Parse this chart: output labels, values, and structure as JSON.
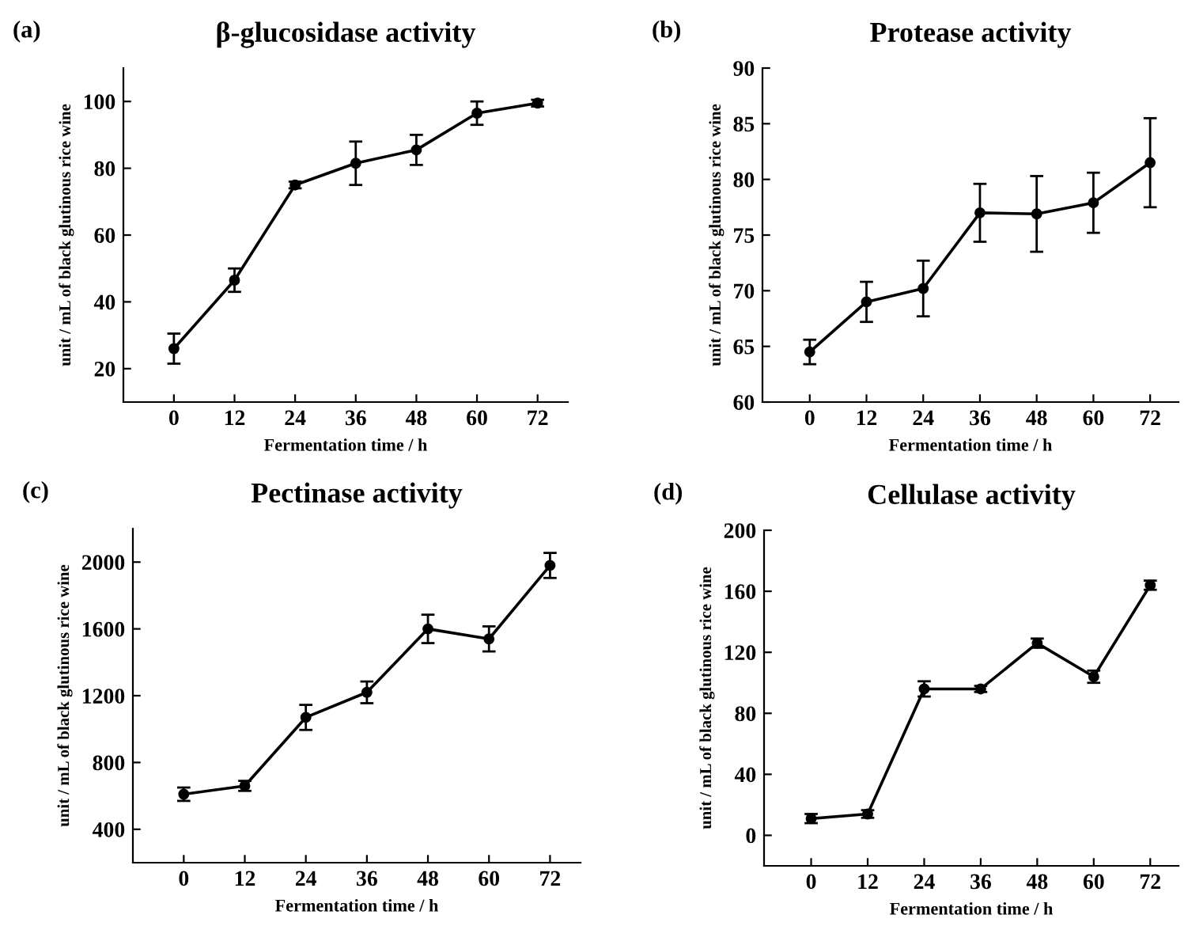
{
  "chart_data": [
    {
      "type": "line",
      "title": "β-glucosidase activity",
      "xlabel": "Fermentation time / h",
      "ylabel": "unit / mL of black glutinous rice wine",
      "annotations": [
        "(a)"
      ],
      "x": [
        0,
        12,
        24,
        36,
        48,
        60,
        72
      ],
      "xlim": [
        -10,
        78
      ],
      "xticks": [
        0,
        12,
        24,
        36,
        48,
        60,
        72
      ],
      "ylim": [
        10,
        110
      ],
      "yticks": [
        20,
        40,
        60,
        80,
        100
      ],
      "marker": "circle",
      "series": [
        {
          "color": "#000000",
          "values": [
            26,
            46.5,
            75,
            81.5,
            85.5,
            96.5,
            99.5
          ],
          "errors": [
            4.5,
            3.5,
            1,
            6.5,
            4.5,
            3.5,
            1
          ]
        }
      ]
    },
    {
      "type": "line",
      "title": "Protease activity",
      "xlabel": "Fermentation time / h",
      "ylabel": "unit / mL of black glutinous rice wine",
      "annotations": [
        "(b)"
      ],
      "x": [
        0,
        12,
        24,
        36,
        48,
        60,
        72
      ],
      "xlim": [
        -10,
        78
      ],
      "xticks": [
        0,
        12,
        24,
        36,
        48,
        60,
        72
      ],
      "ylim": [
        60,
        90
      ],
      "yticks": [
        60,
        65,
        70,
        75,
        80,
        85,
        90
      ],
      "marker": "circle",
      "series": [
        {
          "color": "#000000",
          "values": [
            64.5,
            69,
            70.2,
            77,
            76.9,
            77.9,
            81.5
          ],
          "errors": [
            1.1,
            1.8,
            2.5,
            2.6,
            3.4,
            2.7,
            4
          ]
        }
      ]
    },
    {
      "type": "line",
      "title": "Pectinase activity",
      "xlabel": "Fermentation time / h",
      "ylabel": "unit / mL of black glutinous rice wine",
      "annotations": [
        "(c)"
      ],
      "x": [
        0,
        12,
        24,
        36,
        48,
        60,
        72
      ],
      "xlim": [
        -10,
        78
      ],
      "xticks": [
        0,
        12,
        24,
        36,
        48,
        60,
        72
      ],
      "ylim": [
        200,
        2200
      ],
      "yticks": [
        400,
        800,
        1200,
        1600,
        2000
      ],
      "marker": "circle",
      "series": [
        {
          "color": "#000000",
          "values": [
            610,
            660,
            1070,
            1220,
            1600,
            1540,
            1980
          ],
          "errors": [
            40,
            30,
            75,
            65,
            85,
            75,
            75
          ]
        }
      ]
    },
    {
      "type": "line",
      "title": "Cellulase activity",
      "xlabel": "Fermentation time / h",
      "ylabel": "unit / mL of black glutinous rice wine",
      "annotations": [
        "(d)"
      ],
      "x": [
        0,
        12,
        24,
        36,
        48,
        60,
        72
      ],
      "xlim": [
        -10,
        78
      ],
      "xticks": [
        0,
        12,
        24,
        36,
        48,
        60,
        72
      ],
      "ylim": [
        -20,
        200
      ],
      "yticks": [
        0,
        40,
        80,
        120,
        160,
        200
      ],
      "marker": "circle",
      "series": [
        {
          "color": "#000000",
          "values": [
            11,
            14,
            96,
            96,
            126,
            104,
            164
          ],
          "errors": [
            3,
            2.5,
            5,
            2,
            3,
            4,
            3
          ]
        }
      ]
    }
  ]
}
